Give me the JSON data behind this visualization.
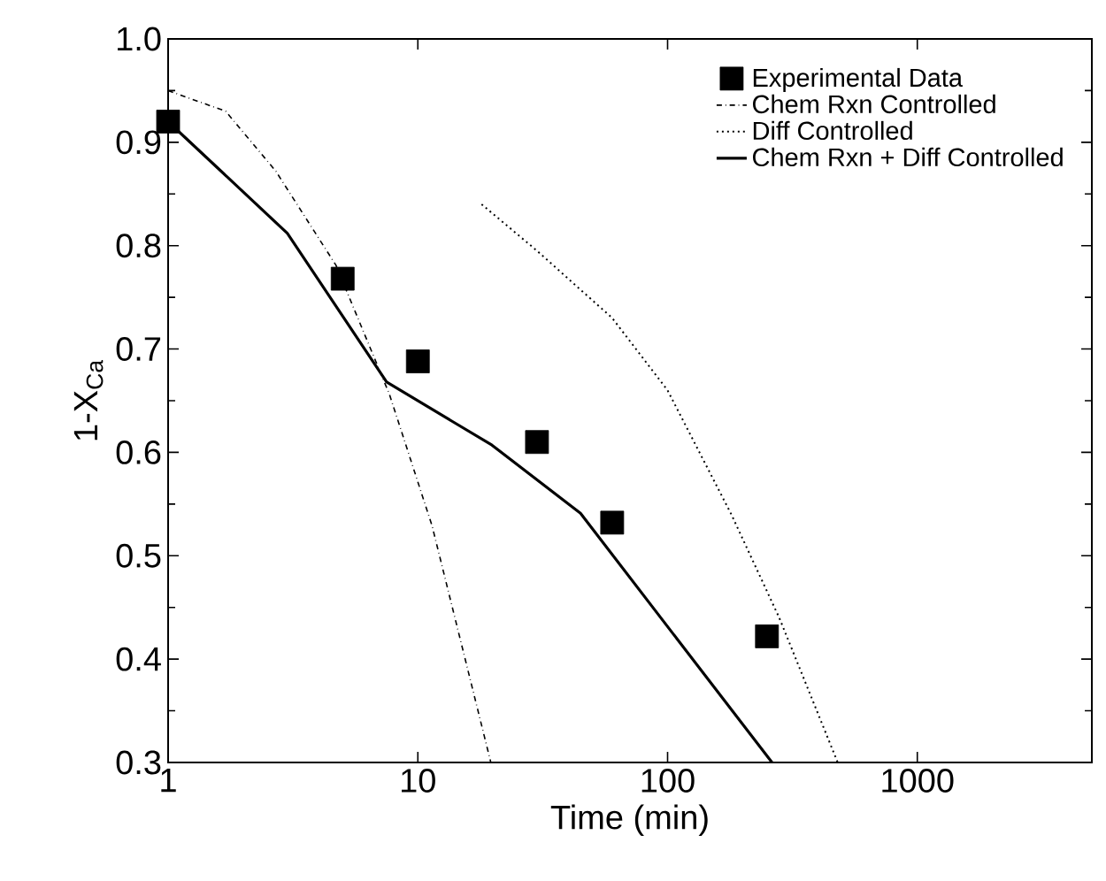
{
  "chart_data": {
    "type": "line",
    "xlabel": "Time (min)",
    "ylabel": "1-X$_{Ca}$",
    "log": "x",
    "xlim": [
      1,
      5000
    ],
    "ylim": [
      0.3,
      1.0
    ],
    "xticks": [
      1,
      10,
      100,
      1000
    ],
    "yticks": [
      0.3,
      0.4,
      0.5,
      0.6,
      0.7,
      0.8,
      0.9,
      {
        "value": 1,
        "label": "1.0"
      }
    ],
    "legend": "top right",
    "grid": false,
    "series": [
      {
        "name": "Experimental Data",
        "type": "scatter",
        "marker": "square",
        "color": "#000000",
        "x": [
          1,
          5,
          10,
          30,
          60,
          250
        ],
        "values": [
          0.92,
          0.768,
          0.688,
          0.61,
          0.532,
          0.422
        ]
      },
      {
        "name": "Chem Rxn Controlled",
        "line_style": "dashdot",
        "color": "#000000",
        "x": [
          1,
          1.7,
          2.7,
          4.7,
          7.7,
          11.4,
          19.6
        ],
        "values": [
          0.95,
          0.93,
          0.872,
          0.781,
          0.656,
          0.529,
          0.3
        ]
      },
      {
        "name": "Diff Controlled",
        "line_style": "dotted",
        "color": "#000000",
        "x": [
          18,
          30,
          60,
          100,
          180,
          280,
          480
        ],
        "values": [
          0.84,
          0.795,
          0.73,
          0.66,
          0.54,
          0.44,
          0.3
        ]
      },
      {
        "name": "Chem Rxn + Diff Controlled",
        "line_style": "solid",
        "color": "#000000",
        "x": [
          1,
          3,
          7.5,
          19.8,
          44.8,
          262
        ],
        "values": [
          0.92,
          0.812,
          0.668,
          0.607,
          0.541,
          0.3
        ]
      }
    ]
  }
}
